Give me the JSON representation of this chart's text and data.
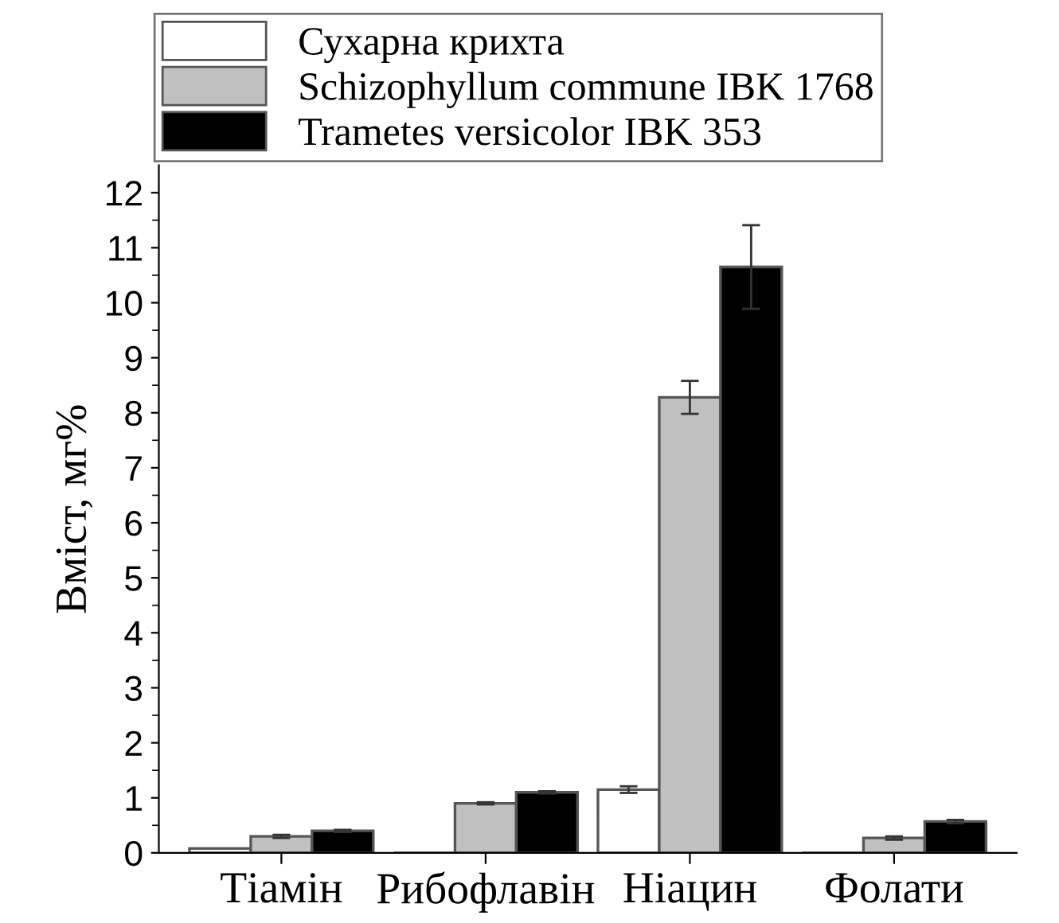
{
  "chart_data": {
    "type": "bar",
    "ylabel": "Вміст, мг%",
    "categories": [
      "Тіамін",
      "Рибофлавін",
      "Ніацин",
      "Фолати"
    ],
    "series": [
      {
        "name": "Сухарна крихта",
        "color": "#ffffff",
        "values": [
          0.08,
          null,
          1.15,
          null
        ],
        "errors": [
          null,
          null,
          0.06,
          null
        ]
      },
      {
        "name": "Schizophyllum commune IBK 1768",
        "color": "#c0c0c0",
        "values": [
          0.3,
          0.9,
          8.28,
          0.27
        ],
        "errors": [
          0.03,
          0.02,
          0.3,
          0.03
        ]
      },
      {
        "name": "Trametes versicolor IBK 353",
        "color": "#000000",
        "values": [
          0.4,
          1.1,
          10.65,
          0.57
        ],
        "errors": [
          0.02,
          0.02,
          0.76,
          0.03
        ]
      }
    ],
    "ylim": [
      0,
      12.5
    ],
    "yticks": [
      0,
      1,
      2,
      3,
      4,
      5,
      6,
      7,
      8,
      9,
      10,
      11,
      12
    ],
    "legend": "top left",
    "grid": false
  }
}
